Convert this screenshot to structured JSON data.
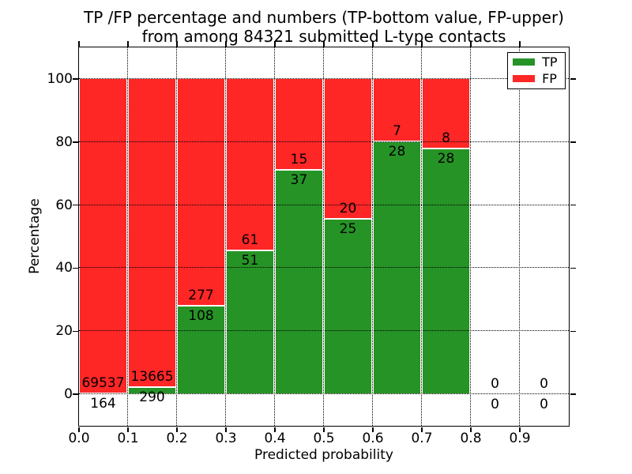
{
  "chart_data": {
    "type": "bar",
    "stacked": true,
    "title_line1": "TP /FP percentage and numbers (TP-bottom value, FP-upper)",
    "title_line2": "from among 84321 submitted L-type contacts",
    "total_submitted": 84321,
    "xlabel": "Predicted probability",
    "ylabel": "Percentage",
    "xlim": [
      0.0,
      1.0
    ],
    "ylim": [
      -10,
      110
    ],
    "bin_edges": [
      0.0,
      0.1,
      0.2,
      0.3,
      0.4,
      0.5,
      0.6,
      0.7,
      0.8,
      0.9,
      1.0
    ],
    "categories": [
      "0.0-0.1",
      "0.1-0.2",
      "0.2-0.3",
      "0.3-0.4",
      "0.4-0.5",
      "0.5-0.6",
      "0.6-0.7",
      "0.7-0.8",
      "0.8-0.9",
      "0.9-1.0"
    ],
    "series": [
      {
        "name": "TP",
        "color": "#269326",
        "counts": [
          164,
          290,
          108,
          51,
          37,
          25,
          28,
          28,
          0,
          0
        ],
        "percent_of_bin": [
          0.24,
          2.08,
          28.05,
          45.54,
          71.15,
          55.56,
          80.0,
          77.78,
          0,
          0
        ]
      },
      {
        "name": "FP",
        "color": "#ff2626",
        "counts": [
          69537,
          13665,
          277,
          61,
          15,
          20,
          7,
          8,
          0,
          0
        ],
        "percent_of_bin": [
          99.76,
          97.92,
          71.95,
          54.46,
          28.85,
          44.44,
          20.0,
          22.22,
          0,
          0
        ]
      }
    ],
    "xticks": {
      "values": [
        0.0,
        0.1,
        0.2,
        0.3,
        0.4,
        0.5,
        0.6,
        0.7,
        0.8,
        0.9
      ],
      "labels": [
        "0.0",
        "0.1",
        "0.2",
        "0.3",
        "0.4",
        "0.5",
        "0.6",
        "0.7",
        "0.8",
        "0.9"
      ]
    },
    "yticks": {
      "values": [
        0,
        20,
        40,
        60,
        80,
        100
      ],
      "labels": [
        "0",
        "20",
        "40",
        "60",
        "80",
        "100"
      ]
    },
    "grid": {
      "style": "dotted",
      "color": "#000000"
    },
    "legend": {
      "position": "upper right"
    },
    "colors": {
      "background": "#ffffff",
      "axis": "#000000",
      "text": "#000000"
    }
  }
}
